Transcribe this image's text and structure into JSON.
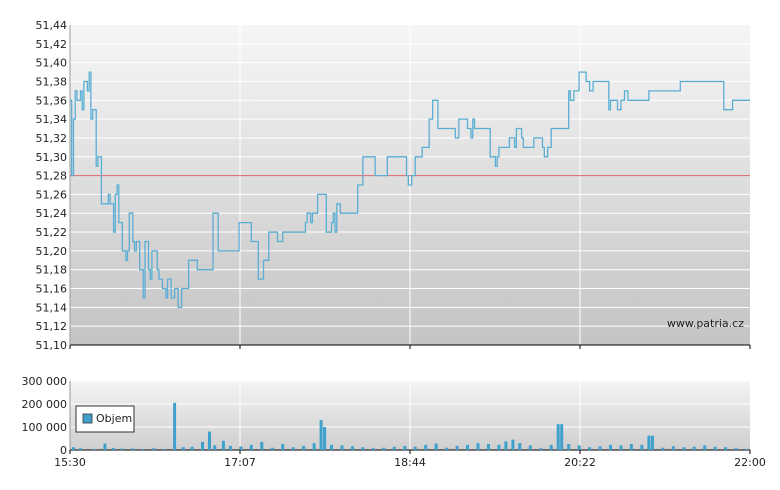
{
  "watermark": "www.patria.cz",
  "colors": {
    "price_line": "#5aaed4",
    "reference_line": "#e06060",
    "volume_bar": "#3fa0cc",
    "grid": "#ffffff",
    "axis": "#000000"
  },
  "chart_data": [
    {
      "type": "line",
      "x_ticks": [
        "15:30",
        "17:07",
        "18:44",
        "20:22",
        "22:00"
      ],
      "x_range_minutes": [
        930,
        1320
      ],
      "y_ticks": [
        "51,10",
        "51,12",
        "51,14",
        "51,16",
        "51,18",
        "51,20",
        "51,22",
        "51,24",
        "51,26",
        "51,28",
        "51,30",
        "51,32",
        "51,34",
        "51,36",
        "51,38",
        "51,40",
        "51,42",
        "51,44"
      ],
      "ylim": [
        51.1,
        51.44
      ],
      "grid": true,
      "reference_value": 51.28,
      "series": [
        {
          "points": [
            [
              930,
              51.36
            ],
            [
              931,
              51.28
            ],
            [
              932,
              51.34
            ],
            [
              933,
              51.37
            ],
            [
              934,
              51.36
            ],
            [
              936,
              51.37
            ],
            [
              937,
              51.35
            ],
            [
              938,
              51.38
            ],
            [
              940,
              51.37
            ],
            [
              941,
              51.39
            ],
            [
              942,
              51.34
            ],
            [
              943,
              51.35
            ],
            [
              945,
              51.29
            ],
            [
              946,
              51.3
            ],
            [
              948,
              51.25
            ],
            [
              951,
              51.25
            ],
            [
              952,
              51.26
            ],
            [
              953,
              51.25
            ],
            [
              955,
              51.22
            ],
            [
              956,
              51.26
            ],
            [
              957,
              51.27
            ],
            [
              958,
              51.23
            ],
            [
              960,
              51.2
            ],
            [
              962,
              51.19
            ],
            [
              963,
              51.2
            ],
            [
              964,
              51.24
            ],
            [
              966,
              51.21
            ],
            [
              967,
              51.2
            ],
            [
              968,
              51.21
            ],
            [
              970,
              51.18
            ],
            [
              972,
              51.15
            ],
            [
              973,
              51.21
            ],
            [
              975,
              51.18
            ],
            [
              976,
              51.17
            ],
            [
              977,
              51.2
            ],
            [
              980,
              51.18
            ],
            [
              981,
              51.17
            ],
            [
              983,
              51.16
            ],
            [
              985,
              51.15
            ],
            [
              986,
              51.17
            ],
            [
              988,
              51.15
            ],
            [
              990,
              51.16
            ],
            [
              992,
              51.14
            ],
            [
              994,
              51.16
            ],
            [
              996,
              51.16
            ],
            [
              998,
              51.19
            ],
            [
              1002,
              51.19
            ],
            [
              1003,
              51.18
            ],
            [
              1008,
              51.18
            ],
            [
              1012,
              51.24
            ],
            [
              1014,
              51.24
            ],
            [
              1015,
              51.2
            ],
            [
              1018,
              51.2
            ],
            [
              1020,
              51.2
            ],
            [
              1026,
              51.2
            ],
            [
              1027,
              51.23
            ],
            [
              1032,
              51.23
            ],
            [
              1034,
              51.21
            ],
            [
              1036,
              51.21
            ],
            [
              1038,
              51.17
            ],
            [
              1040,
              51.17
            ],
            [
              1041,
              51.19
            ],
            [
              1043,
              51.19
            ],
            [
              1044,
              51.22
            ],
            [
              1048,
              51.22
            ],
            [
              1049,
              51.21
            ],
            [
              1050,
              51.21
            ],
            [
              1052,
              51.22
            ],
            [
              1064,
              51.22
            ],
            [
              1065,
              51.23
            ],
            [
              1066,
              51.24
            ],
            [
              1068,
              51.23
            ],
            [
              1069,
              51.24
            ],
            [
              1071,
              51.24
            ],
            [
              1072,
              51.26
            ],
            [
              1076,
              51.26
            ],
            [
              1077,
              51.22
            ],
            [
              1079,
              51.22
            ],
            [
              1080,
              51.23
            ],
            [
              1081,
              51.24
            ],
            [
              1082,
              51.22
            ],
            [
              1083,
              51.25
            ],
            [
              1085,
              51.24
            ],
            [
              1094,
              51.24
            ],
            [
              1095,
              51.27
            ],
            [
              1097,
              51.27
            ],
            [
              1098,
              51.3
            ],
            [
              1104,
              51.3
            ],
            [
              1105,
              51.28
            ],
            [
              1110,
              51.28
            ],
            [
              1112,
              51.3
            ],
            [
              1122,
              51.3
            ],
            [
              1123,
              51.28
            ],
            [
              1124,
              51.27
            ],
            [
              1126,
              51.28
            ],
            [
              1128,
              51.3
            ],
            [
              1132,
              51.31
            ],
            [
              1134,
              51.31
            ],
            [
              1136,
              51.34
            ],
            [
              1138,
              51.36
            ],
            [
              1140,
              51.36
            ],
            [
              1141,
              51.33
            ],
            [
              1150,
              51.33
            ],
            [
              1151,
              51.32
            ],
            [
              1153,
              51.34
            ],
            [
              1157,
              51.34
            ],
            [
              1158,
              51.33
            ],
            [
              1160,
              51.32
            ],
            [
              1161,
              51.34
            ],
            [
              1162,
              51.33
            ],
            [
              1170,
              51.33
            ],
            [
              1171,
              51.3
            ],
            [
              1173,
              51.3
            ],
            [
              1174,
              51.29
            ],
            [
              1175,
              51.3
            ],
            [
              1176,
              51.31
            ],
            [
              1180,
              51.31
            ],
            [
              1182,
              51.32
            ],
            [
              1184,
              51.32
            ],
            [
              1185,
              51.31
            ],
            [
              1186,
              51.33
            ],
            [
              1189,
              51.32
            ],
            [
              1190,
              51.31
            ],
            [
              1195,
              51.31
            ],
            [
              1196,
              51.32
            ],
            [
              1200,
              51.32
            ],
            [
              1201,
              51.31
            ],
            [
              1202,
              51.3
            ],
            [
              1204,
              51.31
            ],
            [
              1206,
              51.33
            ],
            [
              1215,
              51.33
            ],
            [
              1216,
              51.37
            ],
            [
              1217,
              51.36
            ],
            [
              1219,
              51.37
            ],
            [
              1221,
              51.37
            ],
            [
              1222,
              51.39
            ],
            [
              1225,
              51.39
            ],
            [
              1226,
              51.38
            ],
            [
              1228,
              51.37
            ],
            [
              1230,
              51.38
            ],
            [
              1238,
              51.38
            ],
            [
              1239,
              51.35
            ],
            [
              1240,
              51.36
            ],
            [
              1242,
              51.36
            ],
            [
              1244,
              51.35
            ],
            [
              1246,
              51.36
            ],
            [
              1248,
              51.37
            ],
            [
              1250,
              51.36
            ],
            [
              1260,
              51.36
            ],
            [
              1262,
              51.37
            ],
            [
              1275,
              51.37
            ],
            [
              1280,
              51.38
            ],
            [
              1300,
              51.38
            ],
            [
              1305,
              51.35
            ],
            [
              1310,
              51.36
            ],
            [
              1320,
              51.36
            ]
          ]
        }
      ]
    },
    {
      "type": "bar",
      "name": "Objem",
      "y_ticks": [
        "0",
        "100 000",
        "200 000",
        "300 000"
      ],
      "ylim": [
        0,
        300000
      ],
      "legend": "top-left",
      "x_range_minutes": [
        930,
        1320
      ],
      "series": [
        {
          "name": "Objem",
          "points": [
            [
              932,
              12000
            ],
            [
              936,
              8000
            ],
            [
              944,
              5000
            ],
            [
              950,
              28000
            ],
            [
              955,
              9000
            ],
            [
              960,
              6000
            ],
            [
              966,
              7000
            ],
            [
              972,
              5000
            ],
            [
              978,
              8000
            ],
            [
              984,
              5000
            ],
            [
              990,
              205000
            ],
            [
              995,
              12000
            ],
            [
              1000,
              14000
            ],
            [
              1006,
              35000
            ],
            [
              1010,
              80000
            ],
            [
              1013,
              20000
            ],
            [
              1018,
              40000
            ],
            [
              1022,
              18000
            ],
            [
              1028,
              15000
            ],
            [
              1034,
              22000
            ],
            [
              1040,
              35000
            ],
            [
              1046,
              10000
            ],
            [
              1052,
              26000
            ],
            [
              1058,
              12000
            ],
            [
              1064,
              18000
            ],
            [
              1070,
              30000
            ],
            [
              1074,
              130000
            ],
            [
              1076,
              100000
            ],
            [
              1080,
              22000
            ],
            [
              1086,
              20000
            ],
            [
              1092,
              16000
            ],
            [
              1098,
              12000
            ],
            [
              1104,
              8000
            ],
            [
              1110,
              10000
            ],
            [
              1116,
              14000
            ],
            [
              1122,
              18000
            ],
            [
              1128,
              14000
            ],
            [
              1134,
              22000
            ],
            [
              1140,
              28000
            ],
            [
              1146,
              10000
            ],
            [
              1152,
              18000
            ],
            [
              1158,
              22000
            ],
            [
              1164,
              30000
            ],
            [
              1170,
              26000
            ],
            [
              1176,
              22000
            ],
            [
              1180,
              38000
            ],
            [
              1184,
              45000
            ],
            [
              1188,
              30000
            ],
            [
              1194,
              20000
            ],
            [
              1200,
              8000
            ],
            [
              1206,
              22000
            ],
            [
              1210,
              112000
            ],
            [
              1212,
              112000
            ],
            [
              1216,
              26000
            ],
            [
              1222,
              20000
            ],
            [
              1228,
              12000
            ],
            [
              1234,
              16000
            ],
            [
              1240,
              22000
            ],
            [
              1246,
              20000
            ],
            [
              1252,
              26000
            ],
            [
              1258,
              22000
            ],
            [
              1262,
              62000
            ],
            [
              1264,
              62000
            ],
            [
              1270,
              10000
            ],
            [
              1276,
              16000
            ],
            [
              1282,
              12000
            ],
            [
              1288,
              14000
            ],
            [
              1294,
              20000
            ],
            [
              1300,
              14000
            ],
            [
              1306,
              12000
            ],
            [
              1312,
              8000
            ],
            [
              1318,
              5000
            ]
          ]
        }
      ]
    }
  ]
}
